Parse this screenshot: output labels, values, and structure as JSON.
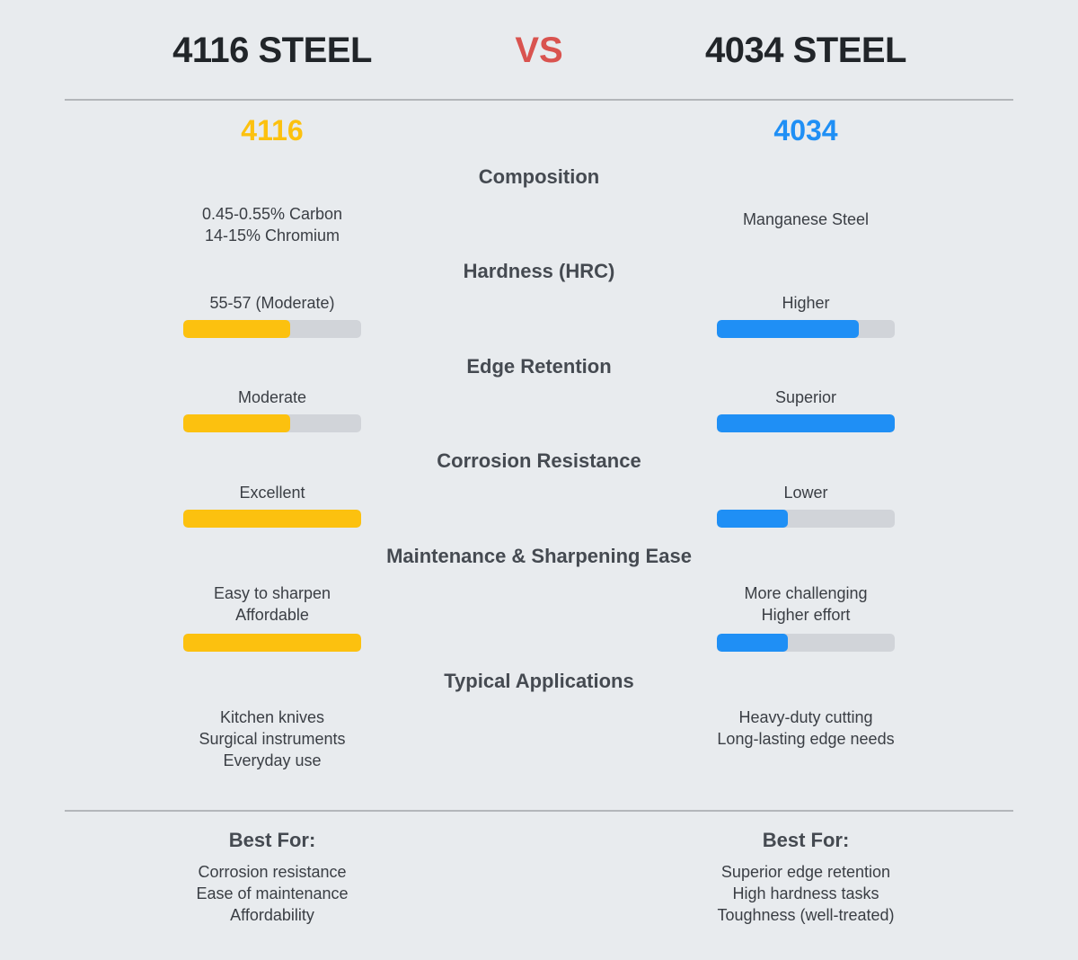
{
  "header": {
    "left_title": "4116 STEEL",
    "vs_label": "VS",
    "right_title": "4034 STEEL"
  },
  "colors": {
    "steel_4116": "#fcc10f",
    "steel_4034": "#1f8ff5",
    "vs": "#d9534f",
    "bar_track": "#d1d4d9",
    "background": "#e8ebee"
  },
  "columns": {
    "left_label": "4116",
    "right_label": "4034"
  },
  "sections": [
    {
      "title": "Composition",
      "left": [
        "0.45-0.55% Carbon",
        "14-15% Chromium"
      ],
      "right": [
        "Manganese Steel"
      ]
    },
    {
      "title": "Hardness (HRC)",
      "left": [
        "55-57 (Moderate)"
      ],
      "left_bar": 60,
      "right": [
        "Higher"
      ],
      "right_bar": 80
    },
    {
      "title": "Edge Retention",
      "left": [
        "Moderate"
      ],
      "left_bar": 60,
      "right": [
        "Superior"
      ],
      "right_bar": 100
    },
    {
      "title": "Corrosion Resistance",
      "left": [
        "Excellent"
      ],
      "left_bar": 100,
      "right": [
        "Lower"
      ],
      "right_bar": 40
    },
    {
      "title": "Maintenance & Sharpening Ease",
      "left": [
        "Easy to sharpen",
        "Affordable"
      ],
      "left_bar": 100,
      "right": [
        "More challenging",
        "Higher effort"
      ],
      "right_bar": 40
    },
    {
      "title": "Typical Applications",
      "left": [
        "Kitchen knives",
        "Surgical instruments",
        "Everyday use"
      ],
      "right": [
        "Heavy-duty cutting",
        "Long-lasting edge needs"
      ]
    }
  ],
  "best_for": {
    "left": {
      "title": "Best For:",
      "items": [
        "Corrosion resistance",
        "Ease of maintenance",
        "Affordability"
      ]
    },
    "right": {
      "title": "Best For:",
      "items": [
        "Superior edge retention",
        "High hardness tasks",
        "Toughness (well-treated)"
      ]
    }
  }
}
